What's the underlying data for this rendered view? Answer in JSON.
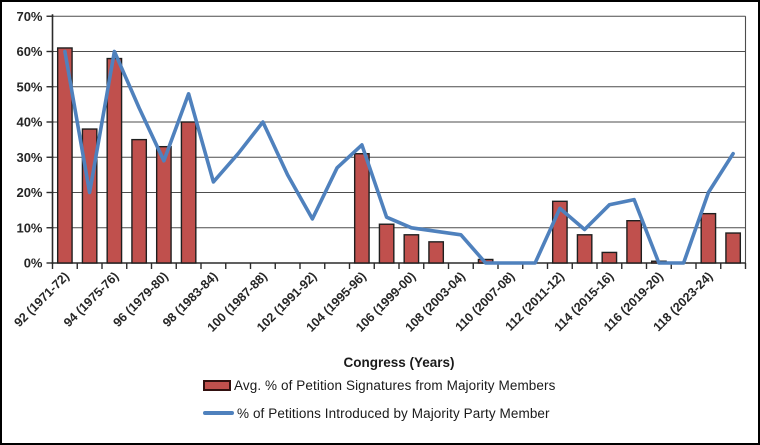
{
  "chart_data": {
    "type": "combo-bar-line",
    "categories": [
      92,
      93,
      94,
      95,
      96,
      97,
      98,
      99,
      100,
      101,
      102,
      103,
      104,
      105,
      106,
      107,
      108,
      109,
      110,
      111,
      112,
      113,
      114,
      115,
      116,
      117,
      118,
      119
    ],
    "series": [
      {
        "name": "Avg. % of Petition Signatures from Majority Members",
        "type": "bar",
        "color": "#C0504D",
        "border_color": "#31100f",
        "values": [
          61,
          38,
          58,
          35,
          33,
          40,
          null,
          null,
          null,
          null,
          null,
          null,
          31,
          11,
          8,
          6,
          null,
          1,
          null,
          null,
          17.5,
          8,
          3,
          12,
          0.5,
          null,
          14,
          8.5
        ]
      },
      {
        "name": "% of Petitions Introduced by Majority Party Member",
        "type": "line",
        "color": "#4F81BD",
        "values": [
          60,
          20,
          60,
          44,
          29,
          48,
          23,
          31,
          40,
          25,
          12.5,
          27,
          33.5,
          13,
          10,
          9,
          8,
          0,
          0,
          0,
          15.5,
          9.5,
          16.5,
          18,
          0,
          0,
          20,
          31
        ]
      }
    ],
    "x_axis": {
      "title": "Congress (Years)",
      "label_interval": 2,
      "labels": [
        "92 (1971-72)",
        "94 (1975-76)",
        "96 (1979-80)",
        "98 (1983-84)",
        "100 (1987-88)",
        "102 (1991-92)",
        "104 (1995-96)",
        "106 (1999-00)",
        "108 (2003-04)",
        "110 (2007-08)",
        "112 (2011-12)",
        "114 (2015-16)",
        "116 (2019-20)",
        "118 (2023-24)"
      ]
    },
    "y_axis": {
      "ticks": [
        "0%",
        "10%",
        "20%",
        "30%",
        "40%",
        "50%",
        "60%",
        "70%"
      ],
      "min": 0,
      "max": 70
    },
    "grid": true,
    "legend_position": "bottom-left"
  }
}
